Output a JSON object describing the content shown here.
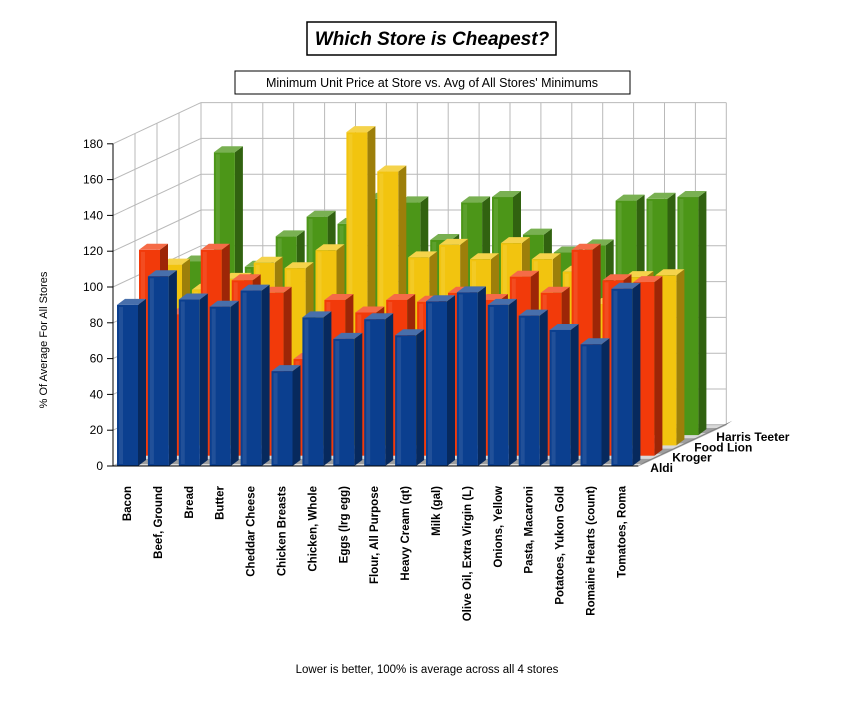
{
  "chart_data": {
    "type": "bar",
    "subtype": "3d-clustered-depth",
    "title": "Which Store is Cheapest?",
    "subtitle": "Minimum Unit Price at Store vs. Avg of All Stores' Minimums",
    "ylabel": "% Of Average For All Stores",
    "footnote": "Lower is better,  100% is average across all 4 stores",
    "ylim": [
      0,
      180
    ],
    "yticks": [
      0,
      20,
      40,
      60,
      80,
      100,
      120,
      140,
      160,
      180
    ],
    "grid": true,
    "categories": [
      "Bacon",
      "Beef, Ground",
      "Bread",
      "Butter",
      "Cheddar Cheese",
      "Chicken Breasts",
      "Chicken, Whole",
      "Eggs (lrg egg)",
      "Flour, All Purpose",
      "Heavy Cream (qt)",
      "Milk (gal)",
      "Olive Oil, Extra Virgin (L)",
      "Onions, Yellow",
      "Pasta, Macaroni",
      "Potatoes, Yukon Gold",
      "Romaine Hearts (count)",
      "Tomatoes, Roma"
    ],
    "series": [
      {
        "name": "Aldi",
        "color": "#0b3f8f",
        "values": [
          90,
          106,
          93,
          89,
          98,
          53,
          83,
          71,
          82,
          73,
          92,
          97,
          90,
          84,
          76,
          68,
          99
        ]
      },
      {
        "name": "Kroger",
        "color": "#f23a0a",
        "values": [
          115,
          79,
          115,
          98,
          91,
          54,
          87,
          80,
          87,
          86,
          91,
          87,
          100,
          91,
          115,
          98,
          97
        ]
      },
      {
        "name": "Food Lion",
        "color": "#f2c40f",
        "values": [
          101,
          87,
          93,
          102,
          99,
          109,
          175,
          153,
          105,
          112,
          104,
          113,
          104,
          97,
          79,
          94,
          95
        ]
      },
      {
        "name": "Harris Teeter",
        "color": "#4c9618",
        "values": [
          97,
          158,
          94,
          111,
          122,
          118,
          132,
          130,
          109,
          130,
          133,
          112,
          102,
          106,
          131,
          132,
          133
        ]
      }
    ],
    "colors": {
      "grid": "#b9b9b9",
      "floor": "#9e9e9e"
    }
  }
}
